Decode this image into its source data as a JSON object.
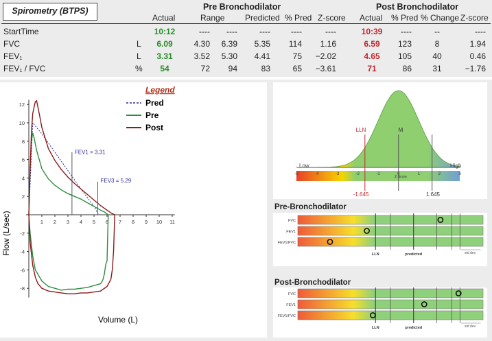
{
  "table": {
    "title": "Spirometry (BTPS)",
    "pre_group": "Pre Bronchodilator",
    "post_group": "Post Bronchodilator",
    "columns": {
      "actual": "Actual",
      "range": "Range",
      "predicted": "Predicted",
      "pct_pred": "% Pred",
      "zscore": "Z-score",
      "post_actual": "Actual",
      "post_pct_pred": "% Pred",
      "pct_change": "% Change",
      "post_zscore": "Z-score"
    },
    "rows": [
      {
        "name": "StartTime",
        "unit": "",
        "actual": "10:12",
        "range_lo": "----",
        "range_hi": "----",
        "predicted": "----",
        "pct_pred": "----",
        "zscore": "----",
        "post_actual": "10:39",
        "post_pct_pred": "----",
        "pct_change": "--",
        "post_zscore": "----"
      },
      {
        "name": "FVC",
        "unit": "L",
        "actual": "6.09",
        "range_lo": "4.30",
        "range_hi": "6.39",
        "predicted": "5.35",
        "pct_pred": "114",
        "zscore": "1.16",
        "post_actual": "6.59",
        "post_pct_pred": "123",
        "pct_change": "8",
        "post_zscore": "1.94"
      },
      {
        "name": "FEV₁",
        "unit": "L",
        "actual": "3.31",
        "range_lo": "3.52",
        "range_hi": "5.30",
        "predicted": "4.41",
        "pct_pred": "75",
        "zscore": "−2.02",
        "post_actual": "4.65",
        "post_pct_pred": "105",
        "pct_change": "40",
        "post_zscore": "0.46"
      },
      {
        "name": "FEV₁ / FVC",
        "unit": "%",
        "actual": "54",
        "range_lo": "72",
        "range_hi": "94",
        "predicted": "83",
        "pct_pred": "65",
        "zscore": "−3.61",
        "post_actual": "71",
        "post_pct_pred": "86",
        "pct_change": "31",
        "post_zscore": "−1.76"
      }
    ]
  },
  "colors": {
    "pred": "#2b2b9a",
    "pre": "#2e8b3e",
    "post": "#8b1a1a",
    "legend_title": "#b0301a",
    "actual_pre": "#2c8c2c",
    "actual_post": "#c0272d",
    "bell": "#8fcf6f",
    "bar_green": "#8fd07a"
  },
  "chart_data": [
    {
      "type": "line",
      "title": "",
      "xlabel": "Volume (L)",
      "ylabel": "Flow  (L/sec)",
      "xlim": [
        0,
        11
      ],
      "ylim": [
        -9,
        12
      ],
      "x_ticks": [
        1,
        2,
        3,
        4,
        5,
        6,
        7,
        8,
        9,
        10,
        11
      ],
      "y_ticks": [
        -8,
        -6,
        -4,
        -2,
        2,
        4,
        6,
        8,
        10,
        12
      ],
      "grid": false,
      "legend": {
        "title": "Legend",
        "placement": "top-right",
        "entries": [
          {
            "name": "Pred",
            "style": "dashed"
          },
          {
            "name": "Pre",
            "style": "solid"
          },
          {
            "name": "Post",
            "style": "solid"
          }
        ]
      },
      "annotations": [
        {
          "text": "FEV1 = 3.31",
          "x": 3.31
        },
        {
          "text": "FEV3 = 5.29",
          "x": 5.29
        }
      ],
      "series": [
        {
          "name": "Pred",
          "x": [
            0,
            0.3,
            1.0,
            2.0,
            3.0,
            4.0,
            5.0,
            5.35
          ],
          "y": [
            0,
            10.0,
            8.8,
            6.8,
            4.8,
            2.8,
            0.9,
            0
          ]
        },
        {
          "name": "Pre",
          "x": [
            0,
            0.1,
            0.2,
            0.3,
            0.4,
            0.6,
            0.8,
            1.0,
            1.5,
            2.0,
            2.5,
            3.0,
            3.5,
            4.0,
            4.5,
            5.0,
            5.5,
            5.8,
            6.0,
            6.09,
            6.0,
            5.9,
            5.8,
            5.7,
            5.6,
            5.5,
            5.0,
            4.5,
            4.0,
            3.5,
            3.0,
            2.5,
            2.0,
            1.5,
            1.0,
            0.5,
            0.3,
            0.1,
            0
          ],
          "y": [
            0,
            5.0,
            8.0,
            8.9,
            8.4,
            7.0,
            6.0,
            5.0,
            3.9,
            3.2,
            2.7,
            2.3,
            2.0,
            1.7,
            1.3,
            0.9,
            0.5,
            0.3,
            0.1,
            0,
            -5.0,
            -5.4,
            -6.4,
            -7.0,
            -7.3,
            -7.5,
            -7.7,
            -7.9,
            -8.0,
            -8.1,
            -8.1,
            -8.2,
            -8.0,
            -7.8,
            -7.2,
            -6.0,
            -4.5,
            -2.0,
            0
          ]
        },
        {
          "name": "Post",
          "x": [
            0,
            0.1,
            0.2,
            0.3,
            0.4,
            0.5,
            0.6,
            0.8,
            1.0,
            1.5,
            2.0,
            2.5,
            3.0,
            3.5,
            4.0,
            4.5,
            5.0,
            5.5,
            6.0,
            6.3,
            6.5,
            6.59,
            6.5,
            6.4,
            6.3,
            6.0,
            5.5,
            5.0,
            4.5,
            4.0,
            3.5,
            3.0,
            2.5,
            2.0,
            1.5,
            1.0,
            0.7,
            0.5,
            0.3,
            0.1,
            0
          ],
          "y": [
            0,
            5.0,
            9.0,
            11.0,
            11.7,
            12.3,
            12.4,
            11.0,
            9.5,
            7.2,
            5.9,
            4.9,
            4.1,
            3.4,
            2.8,
            2.2,
            1.6,
            1.0,
            0.5,
            0.2,
            0.05,
            0,
            -4.0,
            -6.0,
            -7.0,
            -7.8,
            -8.3,
            -8.4,
            -8.5,
            -8.5,
            -8.6,
            -8.6,
            -8.5,
            -8.4,
            -8.3,
            -8.0,
            -7.5,
            -6.8,
            -5.5,
            -3.0,
            0
          ]
        }
      ]
    },
    {
      "type": "area",
      "title": "",
      "xlabel": "Z-Score",
      "xlim": [
        -5,
        3
      ],
      "x_ticks": [
        -5,
        -4,
        -3,
        -2,
        -1,
        0,
        1,
        2,
        3
      ],
      "labels": {
        "low": "Low",
        "high": "High",
        "lln": "LLN",
        "mean": "M",
        "lln_value": "-1.645",
        "uln_value": "1.645"
      },
      "markers": [
        {
          "name": "LLN",
          "x": -1.645
        },
        {
          "name": "M",
          "x": 0
        },
        {
          "name": "ULN",
          "x": 1.645
        }
      ]
    },
    {
      "type": "scatter",
      "title": "Pre-Bronchodilator",
      "categories": [
        "FVC",
        "FEV1",
        "FEV1/FVC"
      ],
      "values": [
        1.16,
        -2.02,
        -3.61
      ],
      "xlim": [
        -5,
        3
      ],
      "axis_labels": {
        "lln": "LLN",
        "predicted": "predicted",
        "std_dev": "std dev"
      }
    },
    {
      "type": "scatter",
      "title": "Post-Bronchodilator",
      "categories": [
        "FVC",
        "FEV1",
        "FEV1/FVC"
      ],
      "values": [
        1.94,
        0.46,
        -1.76
      ],
      "xlim": [
        -5,
        3
      ],
      "axis_labels": {
        "lln": "LLN",
        "predicted": "predicted",
        "std_dev": "std dev"
      }
    }
  ]
}
